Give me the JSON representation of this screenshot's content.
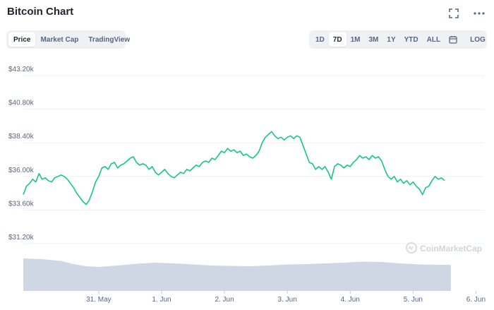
{
  "header": {
    "title": "Bitcoin Chart",
    "fullscreen_icon": "expand-icon",
    "more_icon": "more-horizontal-icon"
  },
  "view_tabs": [
    {
      "label": "Price",
      "active": true
    },
    {
      "label": "Market Cap",
      "active": false
    },
    {
      "label": "TradingView",
      "active": false
    }
  ],
  "range_tabs": [
    {
      "label": "1D",
      "active": false
    },
    {
      "label": "7D",
      "active": true
    },
    {
      "label": "1M",
      "active": false
    },
    {
      "label": "3M",
      "active": false
    },
    {
      "label": "1Y",
      "active": false
    },
    {
      "label": "YTD",
      "active": false
    },
    {
      "label": "ALL",
      "active": false
    }
  ],
  "calendar_icon": "calendar-icon",
  "log_label": "LOG",
  "watermark": "CoinMarketCap",
  "colors": {
    "line": "#16c784",
    "grid": "#eef0f3",
    "volume": "#cfd6e4",
    "axis_text": "#58667e"
  },
  "chart_data": {
    "type": "line",
    "y_ticks": [
      "$43.20k",
      "$40.80k",
      "$38.40k",
      "$36.00k",
      "$33.60k",
      "$31.20k"
    ],
    "y_tick_values": [
      43200,
      40800,
      38400,
      36000,
      33600,
      31200
    ],
    "ylim": [
      31200,
      43200
    ],
    "x_ticks": [
      "31. May",
      "1. Jun",
      "2. Jun",
      "3. Jun",
      "4. Jun",
      "5. Jun",
      "6. Jun"
    ],
    "x_tick_positions": [
      1.2,
      2.2,
      3.2,
      4.2,
      5.2,
      6.2,
      7.2
    ],
    "xlim": [
      0,
      7.33
    ],
    "grid": true,
    "series": [
      {
        "values": [
          [
            0.0,
            34700
          ],
          [
            0.05,
            35300
          ],
          [
            0.1,
            35500
          ],
          [
            0.15,
            35800
          ],
          [
            0.2,
            35600
          ],
          [
            0.25,
            36200
          ],
          [
            0.3,
            35800
          ],
          [
            0.35,
            35900
          ],
          [
            0.4,
            35700
          ],
          [
            0.45,
            35600
          ],
          [
            0.5,
            35900
          ],
          [
            0.55,
            36000
          ],
          [
            0.6,
            36100
          ],
          [
            0.65,
            36000
          ],
          [
            0.7,
            35800
          ],
          [
            0.75,
            35500
          ],
          [
            0.8,
            35200
          ],
          [
            0.85,
            34800
          ],
          [
            0.9,
            34500
          ],
          [
            0.95,
            34200
          ],
          [
            1.0,
            34000
          ],
          [
            1.05,
            34300
          ],
          [
            1.1,
            34900
          ],
          [
            1.15,
            35600
          ],
          [
            1.2,
            36000
          ],
          [
            1.25,
            36600
          ],
          [
            1.3,
            36700
          ],
          [
            1.35,
            36500
          ],
          [
            1.4,
            36900
          ],
          [
            1.45,
            37000
          ],
          [
            1.5,
            36600
          ],
          [
            1.55,
            36800
          ],
          [
            1.6,
            36900
          ],
          [
            1.65,
            37100
          ],
          [
            1.7,
            37300
          ],
          [
            1.75,
            37400
          ],
          [
            1.8,
            37000
          ],
          [
            1.85,
            36800
          ],
          [
            1.9,
            36900
          ],
          [
            1.95,
            36800
          ],
          [
            2.0,
            36500
          ],
          [
            2.05,
            36700
          ],
          [
            2.1,
            36300
          ],
          [
            2.15,
            36100
          ],
          [
            2.2,
            36300
          ],
          [
            2.25,
            36500
          ],
          [
            2.3,
            36200
          ],
          [
            2.35,
            36000
          ],
          [
            2.4,
            35900
          ],
          [
            2.45,
            36100
          ],
          [
            2.5,
            36300
          ],
          [
            2.55,
            36200
          ],
          [
            2.6,
            36500
          ],
          [
            2.65,
            36400
          ],
          [
            2.7,
            36600
          ],
          [
            2.75,
            36800
          ],
          [
            2.8,
            36700
          ],
          [
            2.85,
            37000
          ],
          [
            2.9,
            37100
          ],
          [
            2.95,
            37000
          ],
          [
            3.0,
            37300
          ],
          [
            3.05,
            37200
          ],
          [
            3.1,
            37500
          ],
          [
            3.15,
            37800
          ],
          [
            3.2,
            37700
          ],
          [
            3.25,
            38000
          ],
          [
            3.3,
            37800
          ],
          [
            3.35,
            37900
          ],
          [
            3.4,
            37700
          ],
          [
            3.45,
            37800
          ],
          [
            3.5,
            37500
          ],
          [
            3.55,
            37600
          ],
          [
            3.6,
            37400
          ],
          [
            3.65,
            37300
          ],
          [
            3.7,
            37500
          ],
          [
            3.75,
            37800
          ],
          [
            3.8,
            38400
          ],
          [
            3.85,
            38800
          ],
          [
            3.9,
            39000
          ],
          [
            3.95,
            39200
          ],
          [
            4.0,
            38900
          ],
          [
            4.05,
            38700
          ],
          [
            4.1,
            38800
          ],
          [
            4.15,
            38600
          ],
          [
            4.2,
            38800
          ],
          [
            4.25,
            38900
          ],
          [
            4.3,
            38700
          ],
          [
            4.35,
            38900
          ],
          [
            4.4,
            38800
          ],
          [
            4.45,
            38200
          ],
          [
            4.5,
            37600
          ],
          [
            4.55,
            37000
          ],
          [
            4.6,
            36900
          ],
          [
            4.65,
            36500
          ],
          [
            4.7,
            36700
          ],
          [
            4.75,
            36500
          ],
          [
            4.8,
            36700
          ],
          [
            4.85,
            36300
          ],
          [
            4.9,
            35800
          ],
          [
            4.95,
            36700
          ],
          [
            5.0,
            36900
          ],
          [
            5.05,
            36800
          ],
          [
            5.1,
            36600
          ],
          [
            5.15,
            36800
          ],
          [
            5.2,
            36700
          ],
          [
            5.25,
            37000
          ],
          [
            5.3,
            37200
          ],
          [
            5.35,
            37500
          ],
          [
            5.4,
            37300
          ],
          [
            5.45,
            37400
          ],
          [
            5.5,
            37200
          ],
          [
            5.55,
            37500
          ],
          [
            5.6,
            37300
          ],
          [
            5.65,
            37400
          ],
          [
            5.7,
            37100
          ],
          [
            5.75,
            36500
          ],
          [
            5.8,
            36000
          ],
          [
            5.85,
            35800
          ],
          [
            5.9,
            36000
          ],
          [
            5.95,
            35600
          ],
          [
            6.0,
            35800
          ],
          [
            6.05,
            35500
          ],
          [
            6.1,
            35700
          ],
          [
            6.15,
            35400
          ],
          [
            6.2,
            35600
          ],
          [
            6.25,
            35300
          ],
          [
            6.3,
            35100
          ],
          [
            6.35,
            34700
          ],
          [
            6.4,
            35200
          ],
          [
            6.45,
            35300
          ],
          [
            6.5,
            35700
          ],
          [
            6.55,
            36000
          ],
          [
            6.6,
            35800
          ],
          [
            6.65,
            35900
          ],
          [
            6.7,
            35700
          ]
        ]
      }
    ],
    "volume_series": {
      "values": [
        [
          0.0,
          0.92
        ],
        [
          0.3,
          0.9
        ],
        [
          0.6,
          0.85
        ],
        [
          0.8,
          0.76
        ],
        [
          1.0,
          0.7
        ],
        [
          1.2,
          0.68
        ],
        [
          1.5,
          0.72
        ],
        [
          1.8,
          0.77
        ],
        [
          2.1,
          0.8
        ],
        [
          2.4,
          0.78
        ],
        [
          2.7,
          0.75
        ],
        [
          3.0,
          0.72
        ],
        [
          3.3,
          0.71
        ],
        [
          3.6,
          0.7
        ],
        [
          3.9,
          0.72
        ],
        [
          4.2,
          0.75
        ],
        [
          4.5,
          0.76
        ],
        [
          4.8,
          0.78
        ],
        [
          5.1,
          0.8
        ],
        [
          5.4,
          0.83
        ],
        [
          5.7,
          0.82
        ],
        [
          6.0,
          0.78
        ],
        [
          6.3,
          0.75
        ],
        [
          6.6,
          0.74
        ],
        [
          6.8,
          0.74
        ]
      ]
    }
  }
}
